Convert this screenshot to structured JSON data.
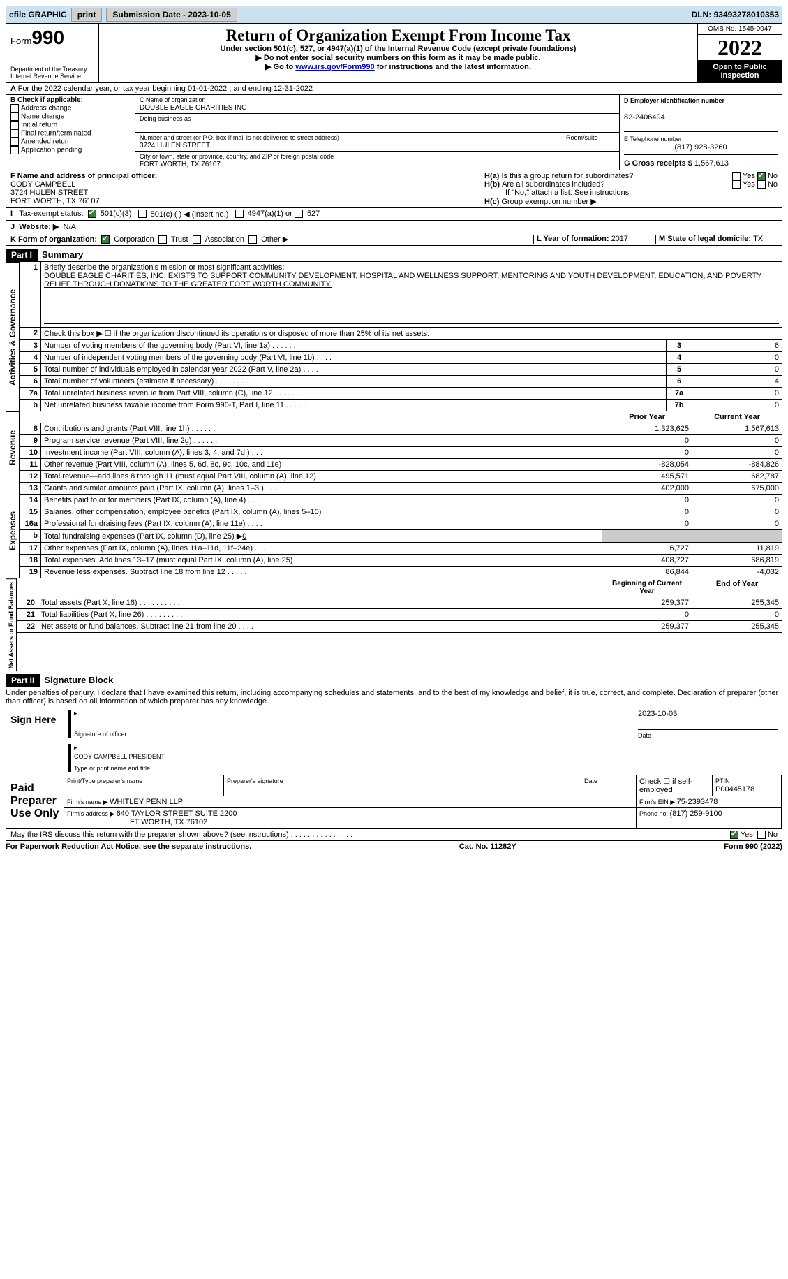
{
  "topbar": {
    "efile": "efile GRAPHIC",
    "print": "print",
    "subdate_label": "Submission Date - ",
    "subdate": "2023-10-05",
    "dln_label": "DLN: ",
    "dln": "93493278010353"
  },
  "header": {
    "form_prefix": "Form",
    "form_num": "990",
    "dept": "Department of the Treasury",
    "irs": "Internal Revenue Service",
    "title": "Return of Organization Exempt From Income Tax",
    "subtitle": "Under section 501(c), 527, or 4947(a)(1) of the Internal Revenue Code (except private foundations)",
    "note1": "▶ Do not enter social security numbers on this form as it may be made public.",
    "note2_pre": "▶ Go to ",
    "note2_link": "www.irs.gov/Form990",
    "note2_post": " for instructions and the latest information.",
    "omb": "OMB No. 1545-0047",
    "year": "2022",
    "open": "Open to Public Inspection"
  },
  "A": {
    "text": "For the 2022 calendar year, or tax year beginning 01-01-2022   , and ending 12-31-2022"
  },
  "B": {
    "label": "B Check if applicable:",
    "opts": [
      "Address change",
      "Name change",
      "Initial return",
      "Final return/terminated",
      "Amended return",
      "Application pending"
    ]
  },
  "C": {
    "name_label": "C Name of organization",
    "name": "DOUBLE EAGLE CHARITIES INC",
    "dba_label": "Doing business as",
    "dba": "",
    "addr_label": "Number and street (or P.O. box if mail is not delivered to street address)",
    "room_label": "Room/suite",
    "addr": "3724 HULEN STREET",
    "city_label": "City or town, state or province, country, and ZIP or foreign postal code",
    "city": "FORT WORTH, TX  76107"
  },
  "D": {
    "label": "D Employer identification number",
    "val": "82-2406494"
  },
  "E": {
    "label": "E Telephone number",
    "val": "(817) 928-3260"
  },
  "G": {
    "label": "G Gross receipts $ ",
    "val": "1,567,613"
  },
  "F": {
    "label": "F Name and address of principal officer:",
    "name": "CODY CAMPBELL",
    "addr1": "3724 HULEN STREET",
    "addr2": "FORT WORTH, TX  76107"
  },
  "H": {
    "a": "Is this a group return for subordinates?",
    "b": "Are all subordinates included?",
    "bnote": "If \"No,\" attach a list. See instructions.",
    "c_label": "Group exemption number ▶",
    "yes": "Yes",
    "no": "No",
    "ha": "H(a)",
    "hb": "H(b)",
    "hc": "H(c)"
  },
  "I": {
    "label": "Tax-exempt status:",
    "o1": "501(c)(3)",
    "o2": "501(c) (  ) ◀ (insert no.)",
    "o3": "4947(a)(1) or",
    "o4": "527"
  },
  "J": {
    "label": "Website: ▶",
    "val": "N/A"
  },
  "K": {
    "label": "K Form of organization:",
    "o1": "Corporation",
    "o2": "Trust",
    "o3": "Association",
    "o4": "Other ▶"
  },
  "L": {
    "label": "L Year of formation: ",
    "val": "2017"
  },
  "M": {
    "label": "M State of legal domicile: ",
    "val": "TX"
  },
  "part1": {
    "bar": "Part I",
    "label": "Summary",
    "l1_label": "Briefly describe the organization's mission or most significant activities:",
    "l1_text": "DOUBLE EAGLE CHARITIES, INC. EXISTS TO SUPPORT COMMUNITY DEVELOPMENT, HOSPITAL AND WELLNESS SUPPORT, MENTORING AND YOUTH DEVELOPMENT, EDUCATION, AND POVERTY RELIEF THROUGH DONATIONS TO THE GREATER FORT WORTH COMMUNITY.",
    "l2": "Check this box ▶ ☐ if the organization discontinued its operations or disposed of more than 25% of its net assets.",
    "prior": "Prior Year",
    "current": "Current Year",
    "begin": "Beginning of Current Year",
    "end": "End of Year",
    "side_ag": "Activities & Governance",
    "side_rev": "Revenue",
    "side_exp": "Expenses",
    "side_net": "Net Assets or Fund Balances",
    "lines_ag": [
      {
        "n": "3",
        "t": "Number of voting members of the governing body (Part VI, line 1a)   .    .    .    .    .    .",
        "box": "3",
        "v": "6"
      },
      {
        "n": "4",
        "t": "Number of independent voting members of the governing body (Part VI, line 1b)   .    .    .    .",
        "box": "4",
        "v": "0"
      },
      {
        "n": "5",
        "t": "Total number of individuals employed in calendar year 2022 (Part V, line 2a)   .    .    .    .",
        "box": "5",
        "v": "0"
      },
      {
        "n": "6",
        "t": "Total number of volunteers (estimate if necessary)    .    .    .    .    .    .    .    .    .",
        "box": "6",
        "v": "4"
      },
      {
        "n": "7a",
        "t": "Total unrelated business revenue from Part VIII, column (C), line 12   .    .    .    .    .    .",
        "box": "7a",
        "v": "0"
      },
      {
        "n": "b",
        "t": "Net unrelated business taxable income from Form 990-T, Part I, line 11   .    .    .    .    .",
        "box": "7b",
        "v": "0"
      }
    ],
    "lines_rev": [
      {
        "n": "8",
        "t": "Contributions and grants (Part VIII, line 1h)    .    .    .    .    .    .",
        "p": "1,323,625",
        "c": "1,567,613"
      },
      {
        "n": "9",
        "t": "Program service revenue (Part VIII, line 2g)   .    .    .    .    .    .",
        "p": "0",
        "c": "0"
      },
      {
        "n": "10",
        "t": "Investment income (Part VIII, column (A), lines 3, 4, and 7d )   .    .    .",
        "p": "0",
        "c": "0"
      },
      {
        "n": "11",
        "t": "Other revenue (Part VIII, column (A), lines 5, 6d, 8c, 9c, 10c, and 11e)",
        "p": "-828,054",
        "c": "-884,826"
      },
      {
        "n": "12",
        "t": "Total revenue—add lines 8 through 11 (must equal Part VIII, column (A), line 12)",
        "p": "495,571",
        "c": "682,787"
      }
    ],
    "lines_exp": [
      {
        "n": "13",
        "t": "Grants and similar amounts paid (Part IX, column (A), lines 1–3 )   .    .    .",
        "p": "402,000",
        "c": "675,000"
      },
      {
        "n": "14",
        "t": "Benefits paid to or for members (Part IX, column (A), line 4)   .    .    .",
        "p": "0",
        "c": "0"
      },
      {
        "n": "15",
        "t": "Salaries, other compensation, employee benefits (Part IX, column (A), lines 5–10)",
        "p": "0",
        "c": "0"
      },
      {
        "n": "16a",
        "t": "Professional fundraising fees (Part IX, column (A), line 11e)   .    .    .    .",
        "p": "0",
        "c": "0"
      },
      {
        "n": "b",
        "t": "Total fundraising expenses (Part IX, column (D), line 25) ▶",
        "val16b": "0",
        "gray": true
      },
      {
        "n": "17",
        "t": "Other expenses (Part IX, column (A), lines 11a–11d, 11f–24e)   .    .    .",
        "p": "6,727",
        "c": "11,819"
      },
      {
        "n": "18",
        "t": "Total expenses. Add lines 13–17 (must equal Part IX, column (A), line 25)",
        "p": "408,727",
        "c": "686,819"
      },
      {
        "n": "19",
        "t": "Revenue less expenses. Subtract line 18 from line 12   .    .    .    .    .",
        "p": "86,844",
        "c": "-4,032"
      }
    ],
    "lines_net": [
      {
        "n": "20",
        "t": "Total assets (Part X, line 16)   .    .    .    .    .    .    .    .    .    .",
        "p": "259,377",
        "c": "255,345"
      },
      {
        "n": "21",
        "t": "Total liabilities (Part X, line 26)   .    .    .    .    .    .    .    .    .",
        "p": "0",
        "c": "0"
      },
      {
        "n": "22",
        "t": "Net assets or fund balances. Subtract line 21 from line 20   .    .    .    .",
        "p": "259,377",
        "c": "255,345"
      }
    ]
  },
  "part2": {
    "bar": "Part II",
    "label": "Signature Block",
    "decl": "Under penalties of perjury, I declare that I have examined this return, including accompanying schedules and statements, and to the best of my knowledge and belief, it is true, correct, and complete. Declaration of preparer (other than officer) is based on all information of which preparer has any knowledge.",
    "signhere": "Sign Here",
    "sigoff": "Signature of officer",
    "date": "Date",
    "sigdate": "2023-10-03",
    "typed": "CODY CAMPBELL  PRESIDENT",
    "typedlabel": "Type or print name and title",
    "paid": "Paid Preparer Use Only",
    "pname_label": "Print/Type preparer's name",
    "psig_label": "Preparer's signature",
    "pdate_label": "Date",
    "check_self": "Check ☐ if self-employed",
    "ptin_label": "PTIN",
    "ptin": "P00445178",
    "firm_label": "Firm's name    ▶ ",
    "firm": "WHITLEY PENN LLP",
    "ein_label": "Firm's EIN ▶ ",
    "ein": "75-2393478",
    "faddr_label": "Firm's address ▶ ",
    "faddr1": "640 TAYLOR STREET SUITE 2200",
    "faddr2": "FT WORTH, TX  76102",
    "phone_label": "Phone no. ",
    "phone": "(817) 259-9100",
    "discuss": "May the IRS discuss this return with the preparer shown above? (see instructions)   .    .    .    .    .    .    .    .    .    .    .    .    .    .    .",
    "yes": "Yes",
    "no": "No"
  },
  "footer": {
    "pra": "For Paperwork Reduction Act Notice, see the separate instructions.",
    "cat": "Cat. No. 11282Y",
    "form": "Form 990 (2022)"
  }
}
